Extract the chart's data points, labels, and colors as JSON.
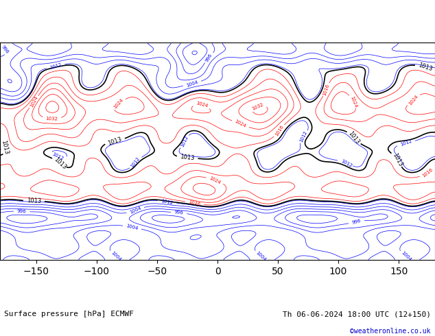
{
  "title_left": "Surface pressure [hPa] ECMWF",
  "title_right": "Th 06-06-2024 18:00 UTC (12+150)",
  "title_right2": "©weatheronline.co.uk",
  "title_right2_color": "#0000cc",
  "background_color": "#ffffff",
  "map_background": "#e8e8e8",
  "land_color": "#ccffcc",
  "ocean_color": "#ffffff",
  "border_color": "#000000",
  "isobar_black_interval": 4,
  "isobar_black_color": "#000000",
  "isobar_blue_color": "#0000ff",
  "isobar_red_color": "#ff0000",
  "isobar_label_size": 7,
  "fig_width": 6.34,
  "fig_height": 4.9,
  "dpi": 100,
  "bottom_bar_height": 0.1,
  "font_size_labels": 8
}
